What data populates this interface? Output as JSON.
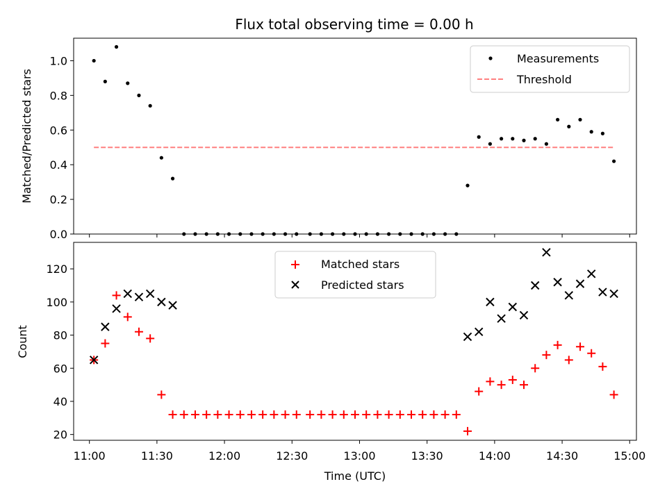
{
  "chart_data": [
    {
      "type": "scatter",
      "title": "Flux total observing time = 0.00 h",
      "xlabel": "",
      "ylabel": "Matched/Predicted stars",
      "xlim": [
        "10:53",
        "15:03"
      ],
      "ylim": [
        0,
        1.13
      ],
      "yticks": [
        "0.0",
        "0.2",
        "0.4",
        "0.6",
        "0.8",
        "1.0"
      ],
      "legend_position": "top-right",
      "series": [
        {
          "name": "Measurements",
          "marker": "dot",
          "color": "#000000",
          "x": [
            "11:02",
            "11:07",
            "11:12",
            "11:17",
            "11:22",
            "11:27",
            "11:32",
            "11:37",
            "11:42",
            "11:47",
            "11:52",
            "11:57",
            "12:02",
            "12:07",
            "12:12",
            "12:17",
            "12:22",
            "12:27",
            "12:32",
            "12:38",
            "12:43",
            "12:48",
            "12:53",
            "12:58",
            "13:03",
            "13:08",
            "13:13",
            "13:18",
            "13:23",
            "13:28",
            "13:33",
            "13:38",
            "13:43",
            "13:48",
            "13:53",
            "13:58",
            "14:03",
            "14:08",
            "14:13",
            "14:18",
            "14:23",
            "14:28",
            "14:33",
            "14:38",
            "14:43",
            "14:48",
            "14:53"
          ],
          "y": [
            1.0,
            0.88,
            1.08,
            0.87,
            0.8,
            0.74,
            0.44,
            0.32,
            0,
            0,
            0,
            0,
            0,
            0,
            0,
            0,
            0,
            0,
            0,
            0,
            0,
            0,
            0,
            0,
            0,
            0,
            0,
            0,
            0,
            0,
            0,
            0,
            0,
            0.28,
            0.56,
            0.52,
            0.55,
            0.55,
            0.54,
            0.55,
            0.52,
            0.66,
            0.62,
            0.66,
            0.59,
            0.58,
            0.42
          ]
        },
        {
          "name": "Threshold",
          "style": "dashed",
          "color": "#ff7f7f",
          "x": [
            "11:02",
            "14:53"
          ],
          "y": [
            0.5,
            0.5
          ]
        }
      ]
    },
    {
      "type": "scatter",
      "xlabel": "Time (UTC)",
      "ylabel": "Count",
      "xlim": [
        "10:53",
        "15:03"
      ],
      "ylim": [
        16.5,
        136
      ],
      "xticks": [
        "11:00",
        "11:30",
        "12:00",
        "12:30",
        "13:00",
        "13:30",
        "14:00",
        "14:30",
        "15:00"
      ],
      "yticks": [
        "20",
        "40",
        "60",
        "80",
        "100",
        "120"
      ],
      "legend_position": "top-center",
      "series": [
        {
          "name": "Matched stars",
          "marker": "plus",
          "color": "#ff0000",
          "x": [
            "11:02",
            "11:07",
            "11:12",
            "11:17",
            "11:22",
            "11:27",
            "11:32",
            "11:37",
            "11:42",
            "11:47",
            "11:52",
            "11:57",
            "12:02",
            "12:07",
            "12:12",
            "12:17",
            "12:22",
            "12:27",
            "12:32",
            "12:38",
            "12:43",
            "12:48",
            "12:53",
            "12:58",
            "13:03",
            "13:08",
            "13:13",
            "13:18",
            "13:23",
            "13:28",
            "13:33",
            "13:38",
            "13:43",
            "13:48",
            "13:53",
            "13:58",
            "14:03",
            "14:08",
            "14:13",
            "14:18",
            "14:23",
            "14:28",
            "14:33",
            "14:38",
            "14:43",
            "14:48",
            "14:53"
          ],
          "y": [
            65,
            75,
            104,
            91,
            82,
            78,
            44,
            32,
            32,
            32,
            32,
            32,
            32,
            32,
            32,
            32,
            32,
            32,
            32,
            32,
            32,
            32,
            32,
            32,
            32,
            32,
            32,
            32,
            32,
            32,
            32,
            32,
            32,
            22,
            46,
            52,
            50,
            53,
            50,
            60,
            68,
            74,
            65,
            73,
            69,
            61,
            44
          ]
        },
        {
          "name": "Predicted stars",
          "marker": "x",
          "color": "#000000",
          "x": [
            "11:02",
            "11:07",
            "11:12",
            "11:17",
            "11:22",
            "11:27",
            "11:32",
            "11:37",
            "13:48",
            "13:53",
            "13:58",
            "14:03",
            "14:08",
            "14:13",
            "14:18",
            "14:23",
            "14:28",
            "14:33",
            "14:38",
            "14:43",
            "14:48",
            "14:53"
          ],
          "y": [
            65,
            85,
            96,
            105,
            103,
            105,
            100,
            98,
            79,
            82,
            100,
            90,
            97,
            92,
            110,
            130,
            112,
            104,
            111,
            117,
            106,
            105
          ]
        }
      ]
    }
  ]
}
